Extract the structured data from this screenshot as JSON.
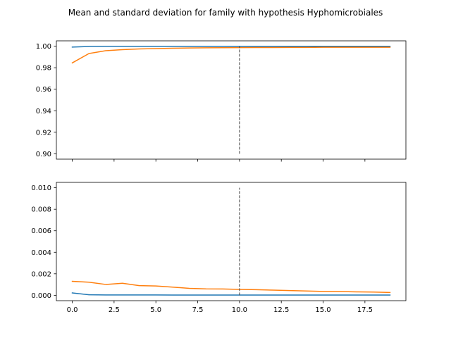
{
  "figure": {
    "title": "Mean and standard deviation for family with hypothesis Hyphomicrobiales"
  },
  "chart_data": [
    {
      "type": "line",
      "panel": "top",
      "x": [
        0,
        1,
        2,
        3,
        4,
        5,
        6,
        7,
        8,
        9,
        10,
        11,
        12,
        13,
        14,
        15,
        16,
        17,
        18,
        19
      ],
      "series": [
        {
          "color": "#1f77b4",
          "values": [
            0.9992,
            0.9998,
            0.9999,
            0.9999,
            0.9999,
            0.9999,
            0.9999,
            0.9999,
            0.9999,
            0.9999,
            0.9999,
            0.9999,
            0.9999,
            0.9999,
            0.9999,
            0.9999,
            0.9999,
            0.9999,
            0.9999,
            0.9999
          ]
        },
        {
          "color": "#ff7f0e",
          "values": [
            0.9845,
            0.9932,
            0.9958,
            0.9968,
            0.9975,
            0.9978,
            0.9981,
            0.9984,
            0.9985,
            0.9986,
            0.9987,
            0.9988,
            0.9988,
            0.9989,
            0.9989,
            0.999,
            0.999,
            0.999,
            0.999,
            0.999
          ]
        }
      ],
      "xlim": [
        -0.95,
        19.95
      ],
      "ylim": [
        0.895,
        1.005
      ],
      "yticks": [
        "0.90",
        "0.92",
        "0.94",
        "0.96",
        "0.98",
        "1.00"
      ],
      "ytick_values": [
        0.9,
        0.92,
        0.94,
        0.96,
        0.98,
        1.0
      ],
      "xticks_labeled": false,
      "xtick_values": [
        0,
        2.5,
        5,
        7.5,
        10,
        12.5,
        15,
        17.5
      ],
      "vline": {
        "x": 10,
        "ymin": 0.9,
        "ymax": 1.0,
        "color": "#444444",
        "style": "dashed"
      }
    },
    {
      "type": "line",
      "panel": "bottom",
      "x": [
        0,
        1,
        2,
        3,
        4,
        5,
        6,
        7,
        8,
        9,
        10,
        11,
        12,
        13,
        14,
        15,
        16,
        17,
        18,
        19
      ],
      "series": [
        {
          "color": "#1f77b4",
          "values": [
            0.00022,
            5e-05,
            3e-05,
            3e-05,
            3e-05,
            3e-05,
            2e-05,
            2e-05,
            2e-05,
            2e-05,
            2e-05,
            2e-05,
            2e-05,
            2e-05,
            2e-05,
            2e-05,
            2e-05,
            2e-05,
            2e-05,
            2e-05
          ]
        },
        {
          "color": "#ff7f0e",
          "values": [
            0.0013,
            0.00122,
            0.00101,
            0.00112,
            0.0009,
            0.00087,
            0.00076,
            0.00065,
            0.0006,
            0.00059,
            0.00055,
            0.00052,
            0.00048,
            0.00044,
            0.0004,
            0.00036,
            0.00035,
            0.00032,
            0.0003,
            0.00026
          ]
        }
      ],
      "xlim": [
        -0.95,
        19.95
      ],
      "ylim": [
        -0.0005,
        0.0105
      ],
      "yticks": [
        "0.000",
        "0.002",
        "0.004",
        "0.006",
        "0.008",
        "0.010"
      ],
      "ytick_values": [
        0,
        0.002,
        0.004,
        0.006,
        0.008,
        0.01
      ],
      "xticks_labeled": true,
      "xticks": [
        "0.0",
        "2.5",
        "5.0",
        "7.5",
        "10.0",
        "12.5",
        "15.0",
        "17.5"
      ],
      "xtick_values": [
        0,
        2.5,
        5,
        7.5,
        10,
        12.5,
        15,
        17.5
      ],
      "vline": {
        "x": 10,
        "ymin": 0,
        "ymax": 0.01,
        "color": "#444444",
        "style": "dashed"
      }
    }
  ]
}
